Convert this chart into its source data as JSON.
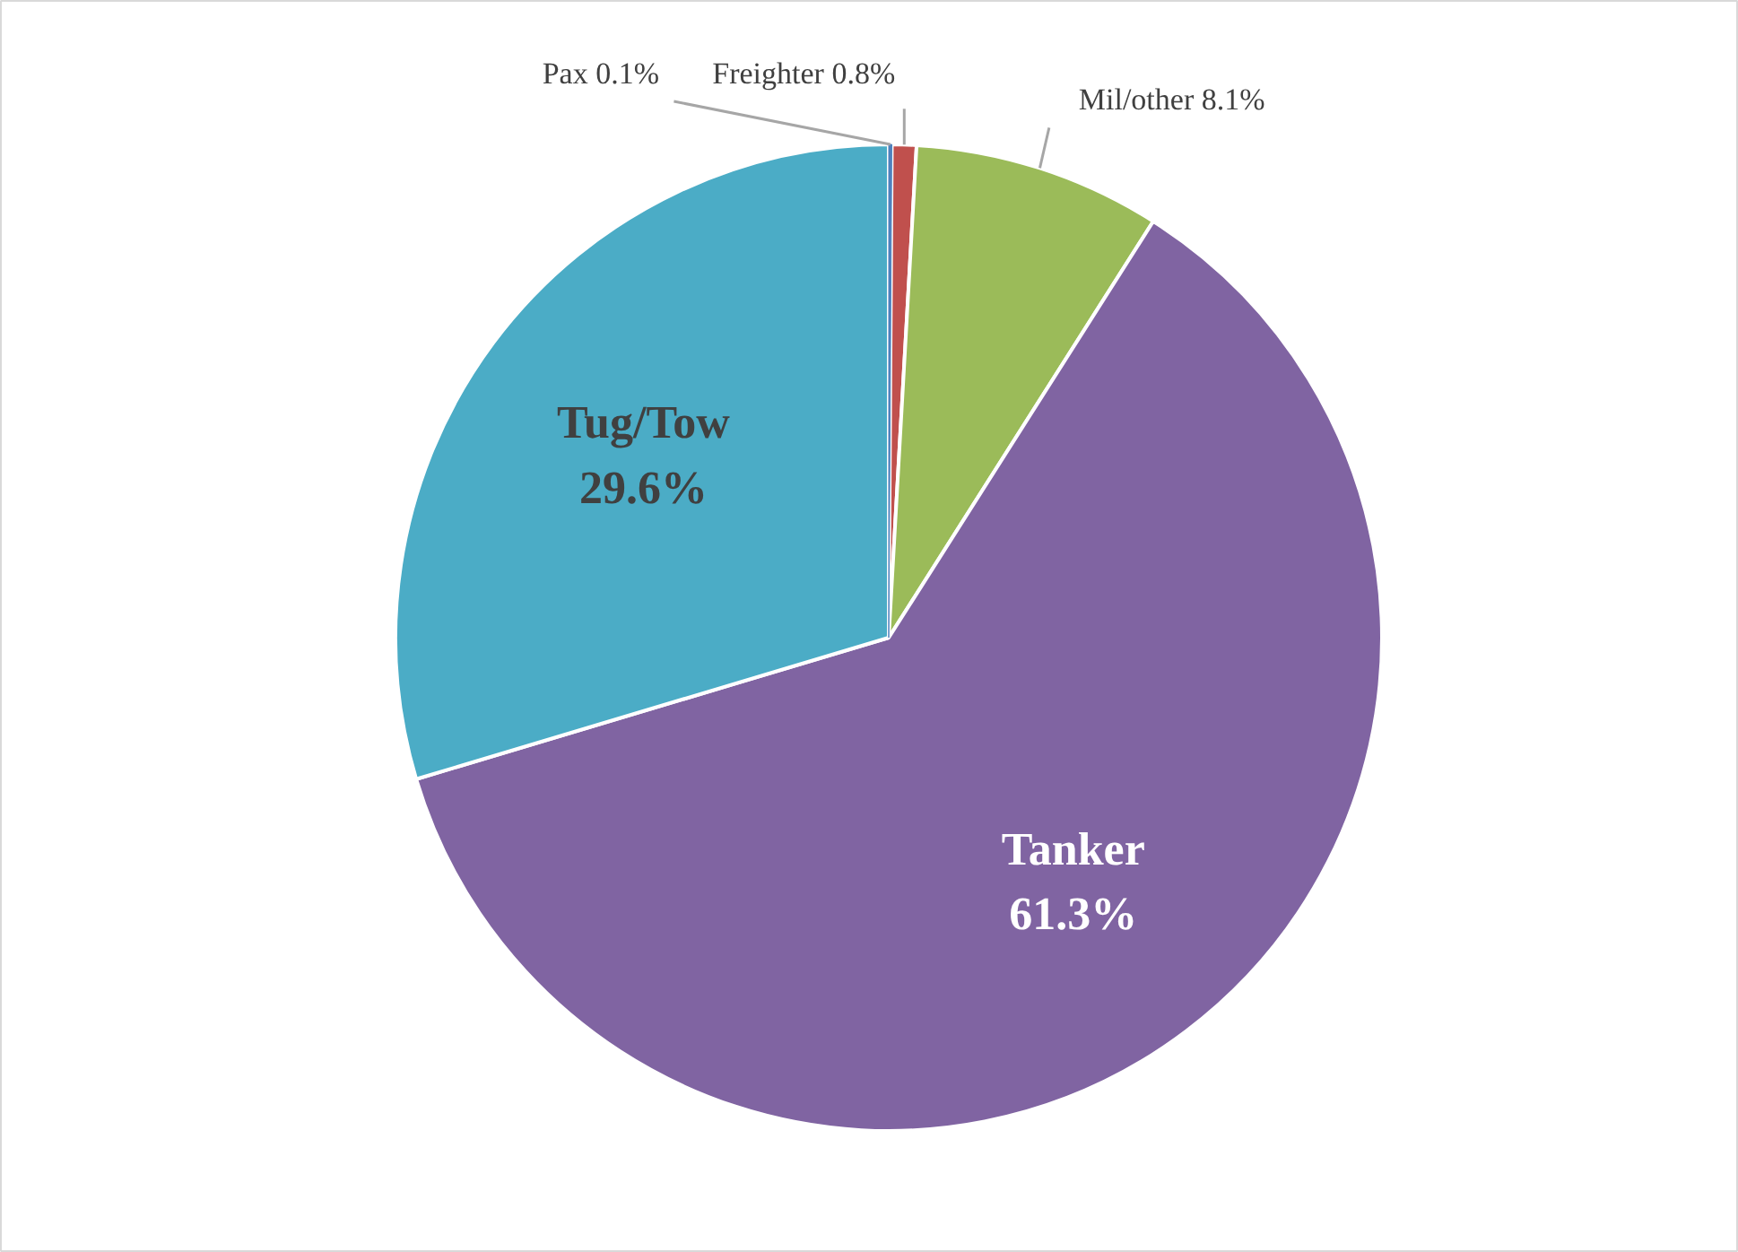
{
  "chart_data": {
    "type": "pie",
    "categories": [
      "Pax",
      "Freighter",
      "Mil/other",
      "Tanker",
      "Tug/Tow"
    ],
    "values": [
      0.1,
      0.8,
      8.1,
      61.3,
      29.6
    ],
    "value_labels": [
      "0.1%",
      "0.8%",
      "8.1%",
      "61.3%",
      "29.6%"
    ],
    "colors": [
      "#4f81bd",
      "#c0504d",
      "#9bbb59",
      "#8064a2",
      "#4bacc6"
    ]
  }
}
